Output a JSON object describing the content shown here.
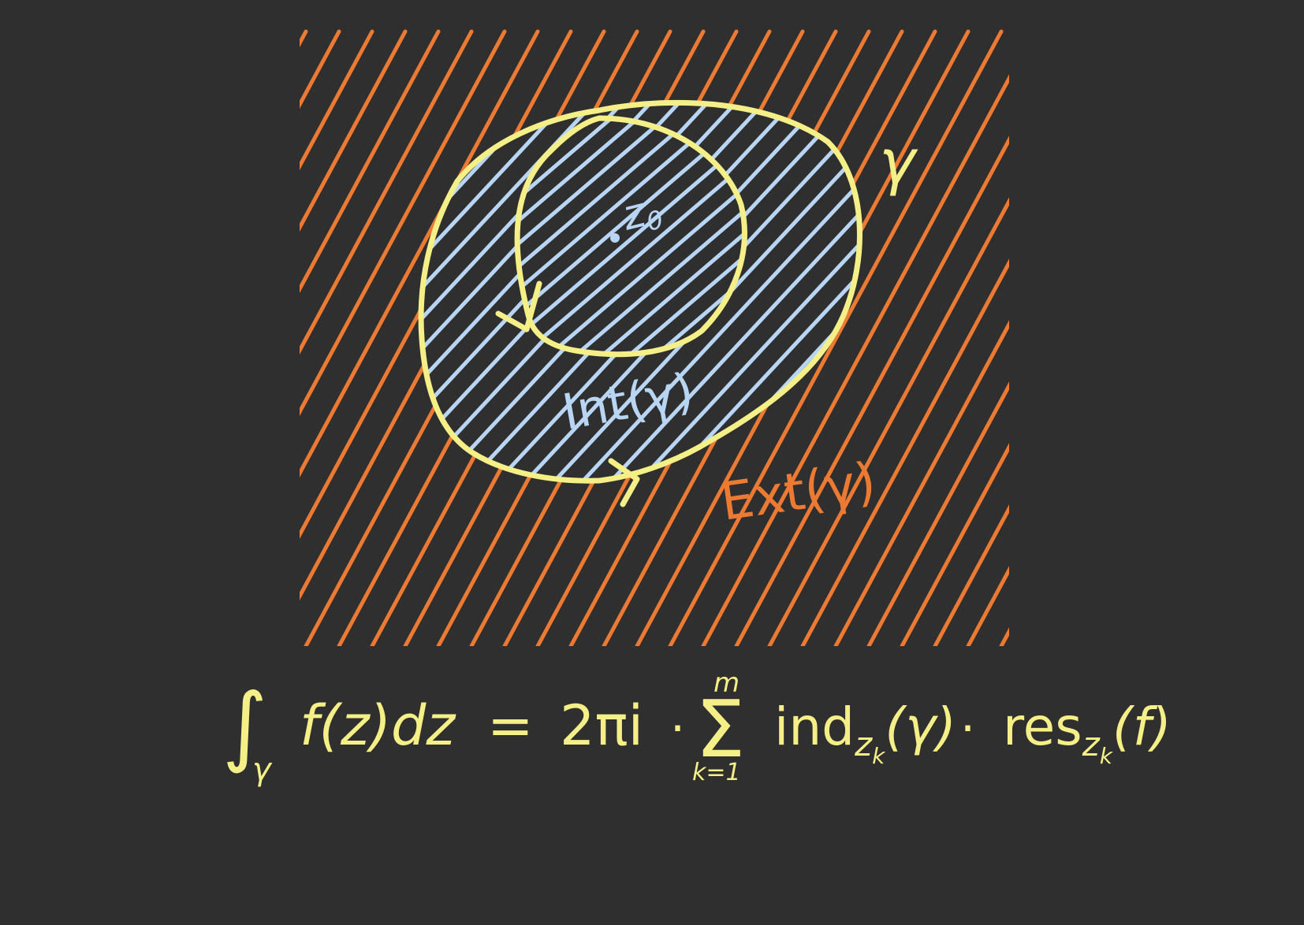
{
  "colors": {
    "background": "#2f2f2f",
    "curve": "#f4ef86",
    "interior": "#b8d6f4",
    "exterior": "#ec7a33"
  },
  "labels": {
    "curve_name": "γ",
    "point": "z",
    "point_sub": "0",
    "interior": "Int(γ)",
    "exterior": "Ext(γ)"
  },
  "formula": {
    "integral_sign": "∫",
    "integral_sub": "γ",
    "integrand": "f(z)dz",
    "equals": "=",
    "factor": "2πi",
    "dot": "·",
    "sum_sign": "Σ",
    "sum_upper": "m",
    "sum_lower": "k=1",
    "ind_text": "ind",
    "ind_sub": "z",
    "ind_subsub": "k",
    "ind_arg": "(γ)",
    "res_text": "res",
    "res_sub": "z",
    "res_subsub": "k",
    "res_arg": "(f)"
  }
}
